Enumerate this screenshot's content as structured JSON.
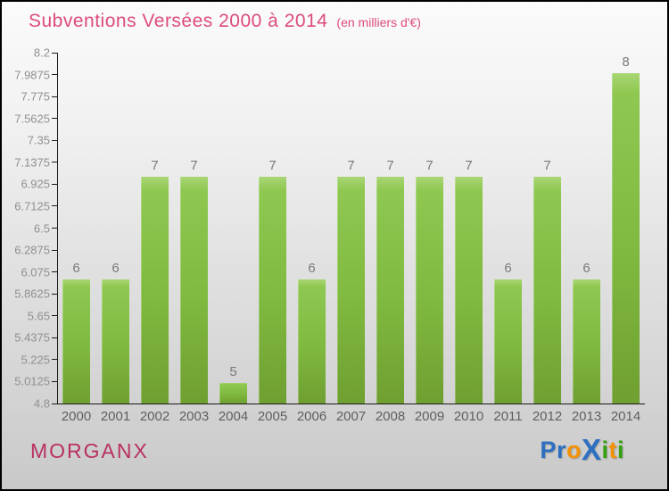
{
  "header": {
    "title": "Subventions Versées 2000 à 2014",
    "subtitle": "(en milliers d'€)"
  },
  "footer": {
    "location": "MORGANX",
    "logo_letters": [
      {
        "ch": "P",
        "color": "#2d6fc0",
        "big": false
      },
      {
        "ch": "r",
        "color": "#2d6fc0",
        "big": false
      },
      {
        "ch": "o",
        "color": "#f59105",
        "big": false
      },
      {
        "ch": "X",
        "color": "#2d6fc0",
        "big": true
      },
      {
        "ch": "i",
        "color": "#35a00d",
        "big": false
      },
      {
        "ch": "t",
        "color": "#f59105",
        "big": false
      },
      {
        "ch": "i",
        "color": "#35a00d",
        "big": false
      }
    ]
  },
  "chart_data": {
    "type": "bar",
    "title": "Subventions Versées 2000 à 2014",
    "subtitle": "(en milliers d'€)",
    "xlabel": "",
    "ylabel": "",
    "categories": [
      "2000",
      "2001",
      "2002",
      "2003",
      "2004",
      "2005",
      "2006",
      "2007",
      "2008",
      "2009",
      "2010",
      "2011",
      "2012",
      "2013",
      "2014"
    ],
    "values": [
      6,
      6,
      7,
      7,
      5,
      7,
      6,
      7,
      7,
      7,
      7,
      6,
      7,
      6,
      8
    ],
    "ylim": [
      4.8,
      8.2
    ],
    "y_ticks": [
      "4.8",
      "5.0125",
      "5.225",
      "5.4375",
      "5.65",
      "5.8625",
      "6.075",
      "6.2875",
      "6.5",
      "6.7125",
      "6.925",
      "7.1375",
      "7.35",
      "7.5625",
      "7.775",
      "7.9875",
      "8.2"
    ],
    "grid": false,
    "legend": false,
    "bar_color_top": "#8fc851",
    "bar_color_bottom": "#6f9f31",
    "title_color": "#dd4b7c",
    "tick_label_color": "#909090",
    "value_label_color": "#7a7a7a"
  }
}
